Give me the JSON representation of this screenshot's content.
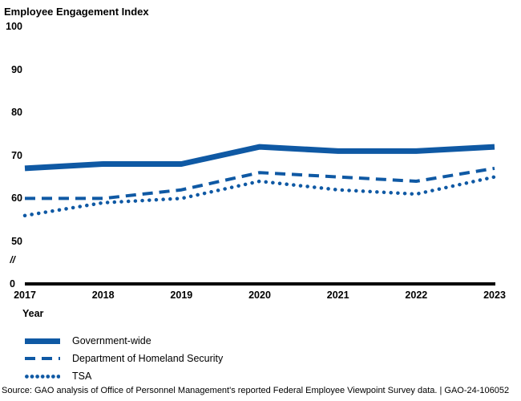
{
  "chart": {
    "title": "Employee Engagement Index",
    "x_axis_title": "Year",
    "break_symbol": "//",
    "zero_label": "0"
  },
  "chart_data": {
    "type": "line",
    "title": "Employee Engagement Index",
    "xlabel": "Year",
    "ylabel": "",
    "x": [
      "2017",
      "2018",
      "2019",
      "2020",
      "2021",
      "2022",
      "2023"
    ],
    "series": [
      {
        "name": "Government-wide",
        "style": "solid",
        "values": [
          67,
          68,
          68,
          72,
          71,
          71,
          72
        ]
      },
      {
        "name": "Department of Homeland Security",
        "style": "dashed",
        "values": [
          60,
          60,
          62,
          66,
          65,
          64,
          67
        ]
      },
      {
        "name": "TSA",
        "style": "dotted",
        "values": [
          56,
          59,
          60,
          64,
          62,
          61,
          65
        ]
      }
    ],
    "y_ticks": [
      100,
      90,
      80,
      70,
      60,
      50
    ],
    "baseline_value": 0,
    "axis_break": true,
    "ylim_display": [
      50,
      100
    ],
    "grid": false,
    "legend_position": "bottom-left",
    "line_color": "#0f59a4",
    "axis_color": "#000000"
  },
  "source": "Source: GAO analysis of Office of Personnel Management's reported Federal Employee Viewpoint Survey data.  |  GAO-24-106052"
}
